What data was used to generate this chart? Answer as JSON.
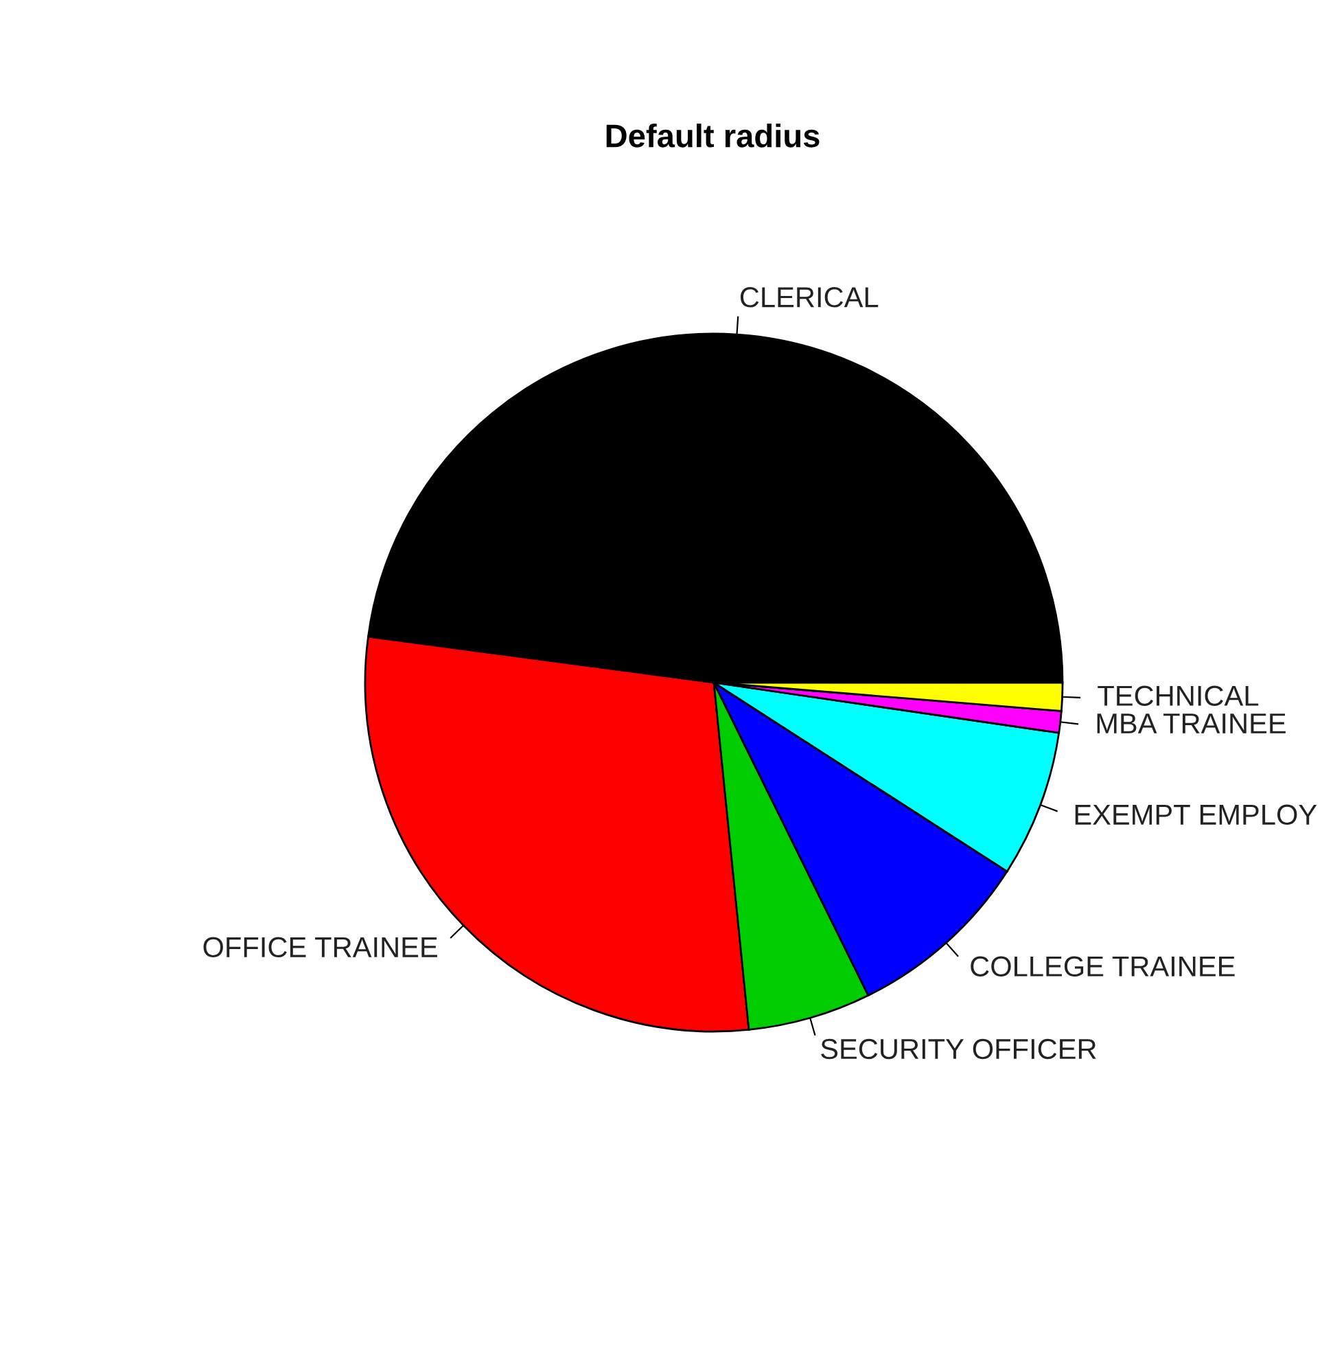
{
  "chart_data": {
    "type": "pie",
    "title": "Default radius",
    "categories": [
      "CLERICAL",
      "OFFICE TRAINEE",
      "SECURITY OFFICER",
      "COLLEGE TRAINEE",
      "EXEMPT EMPLOY",
      "MBA TRAINEE",
      "TECHNICAL"
    ],
    "values": [
      47.9,
      28.7,
      5.7,
      8.6,
      6.8,
      1.0,
      1.3
    ],
    "colors": [
      "#000000",
      "#ff0000",
      "#00cd00",
      "#0000ff",
      "#00ffff",
      "#ff00ff",
      "#ffff00"
    ],
    "legend": false
  }
}
